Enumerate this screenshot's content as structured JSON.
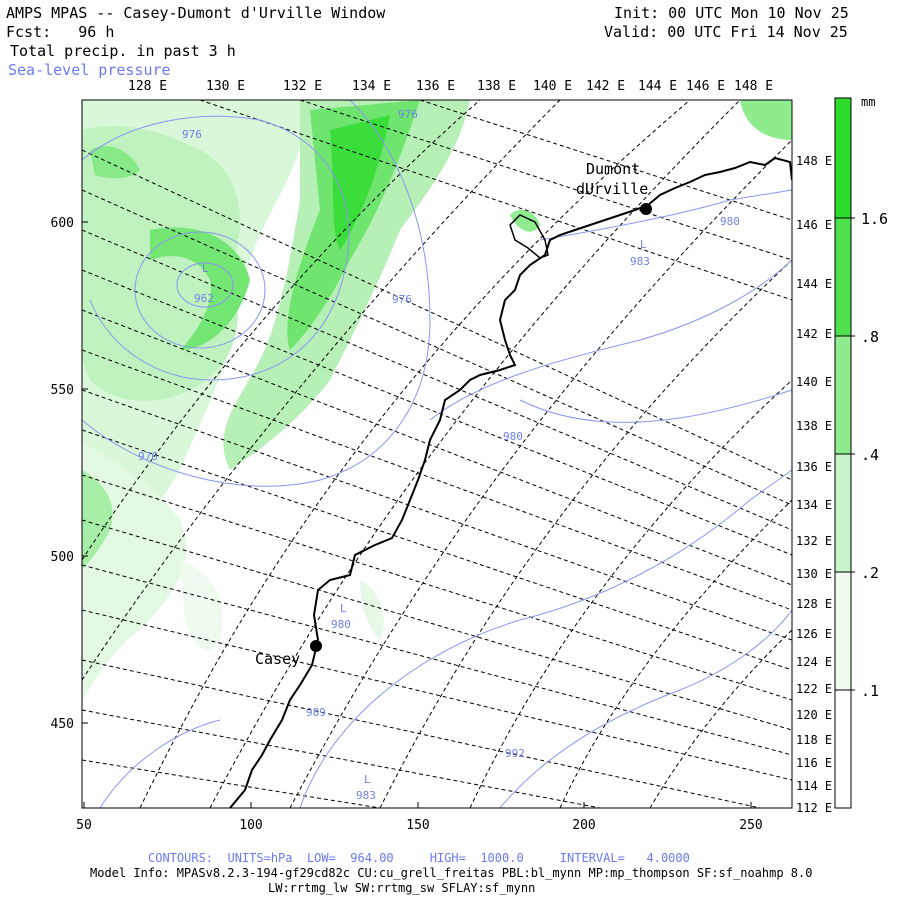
{
  "header": {
    "title": "AMPS MPAS -- Casey-Dumont d'Urville Window",
    "fcst_label": "Fcst:",
    "fcst_value": "96 h",
    "field": "Total precip. in past 3 h",
    "overlay": "Sea-level pressure",
    "init": "Init: 00 UTC Mon 10 Nov 25",
    "valid": "Valid: 00 UTC Fri 14 Nov 25"
  },
  "top_lon_labels": [
    "128 E",
    "130 E",
    "132 E",
    "134 E",
    "136 E",
    "138 E",
    "140 E",
    "142 E",
    "144 E",
    "146 E",
    "148 E"
  ],
  "right_lon_labels": [
    "148 E",
    "146 E",
    "144 E",
    "142 E",
    "140 E",
    "138 E",
    "136 E",
    "134 E",
    "132 E",
    "130 E",
    "128 E",
    "126 E",
    "124 E",
    "122 E",
    "120 E",
    "118 E",
    "116 E",
    "114 E",
    "112 E"
  ],
  "x_axis": {
    "ticks": [
      "50",
      "100",
      "150",
      "200",
      "250"
    ]
  },
  "y_axis": {
    "ticks": [
      "600",
      "550",
      "500",
      "450"
    ]
  },
  "colorbar": {
    "unit": "mm",
    "labels": [
      ".1",
      ".2",
      ".4",
      ".8",
      "1.6"
    ],
    "colors": [
      "#ffffff",
      "#eefbee",
      "#c8f5c8",
      "#8eeb8e",
      "#4fe04f",
      "#2bdc2b"
    ]
  },
  "stations": [
    {
      "name": "Casey"
    },
    {
      "name_line1": "Dumont",
      "name_line2": "dUrville"
    }
  ],
  "pressure_labels": [
    "976",
    "L",
    "962",
    "976",
    "976",
    "976",
    "L",
    "983",
    "980",
    "L",
    "980",
    "989",
    "992",
    "L",
    "983",
    "980"
  ],
  "footer": {
    "contours": "CONTOURS:  UNITS=hPa  LOW=  964.00     HIGH=  1000.0     INTERVAL=   4.0000",
    "model_info": "Model Info: MPASv8.2.3-194-gf29cd82c CU:cu_grell_freitas PBL:bl_mynn MP:mp_thompson SF:sf_noahmp 8.0",
    "model_info2": "LW:rrtmg_lw SW:rrtmg_sw SFLAY:sf_mynn"
  }
}
